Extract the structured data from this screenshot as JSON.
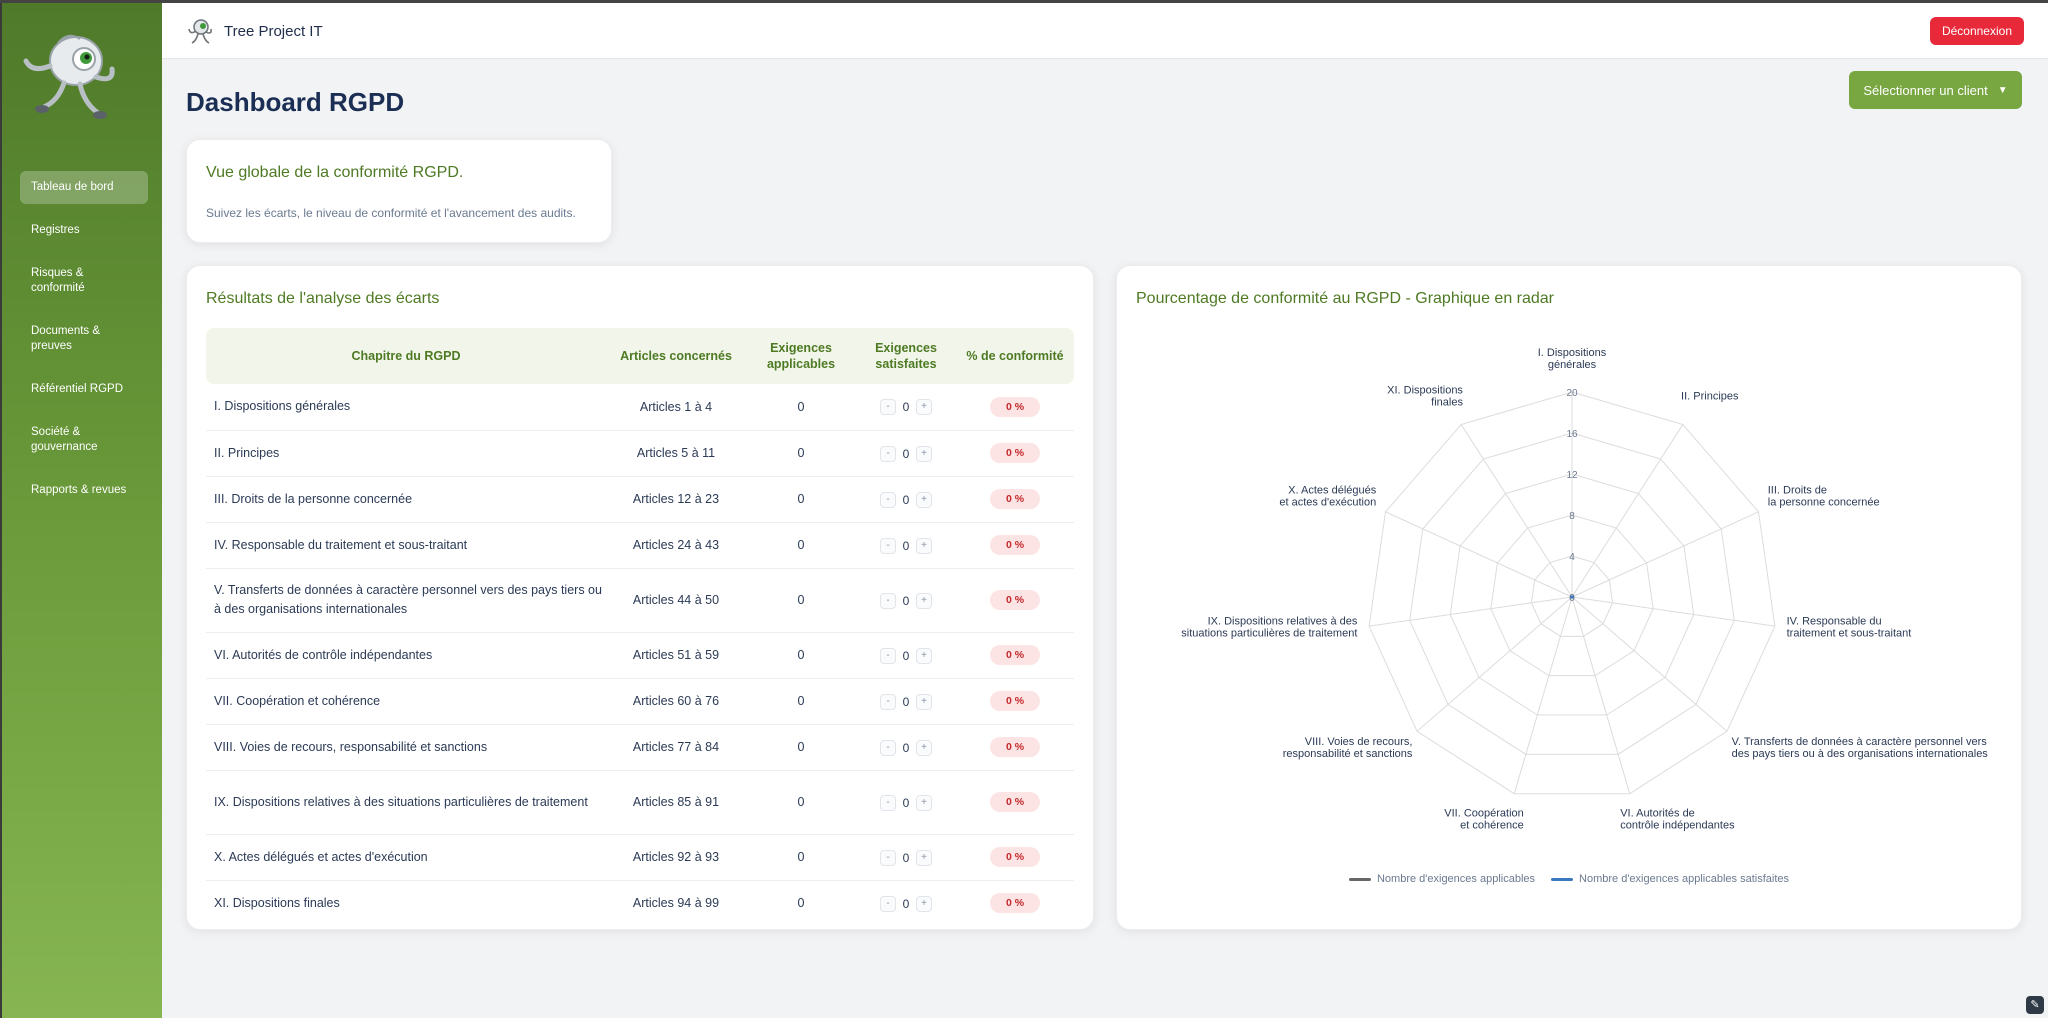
{
  "app": {
    "name": "Tree Project IT",
    "logout_label": "Déconnexion"
  },
  "sidebar": {
    "items": [
      {
        "label": "Tableau de bord",
        "active": true
      },
      {
        "label": "Registres",
        "active": false
      },
      {
        "label": "Risques & conformité",
        "active": false
      },
      {
        "label": "Documents & preuves",
        "active": false
      },
      {
        "label": "Référentiel RGPD",
        "active": false
      },
      {
        "label": "Société & gouvernance",
        "active": false
      },
      {
        "label": "Rapports & revues",
        "active": false
      }
    ]
  },
  "page": {
    "title": "Dashboard RGPD",
    "client_select_label": "Sélectionner un client"
  },
  "intro": {
    "title": "Vue globale de la conformité RGPD.",
    "subtitle": "Suivez les écarts, le niveau de conformité et l'avancement des audits."
  },
  "gaps": {
    "title": "Résultats de l'analyse des écarts",
    "headers": [
      "Chapitre du RGPD",
      "Articles concernés",
      "Exigences applicables",
      "Exigences satisfaites",
      "% de conformité"
    ],
    "rows": [
      {
        "chapter": "I. Dispositions générales",
        "articles": "Articles 1 à 4",
        "applicable": "0",
        "satisfied": "0",
        "pct": "0 %"
      },
      {
        "chapter": "II. Principes",
        "articles": "Articles 5 à 11",
        "applicable": "0",
        "satisfied": "0",
        "pct": "0 %"
      },
      {
        "chapter": "III. Droits de la personne concernée",
        "articles": "Articles 12 à 23",
        "applicable": "0",
        "satisfied": "0",
        "pct": "0 %"
      },
      {
        "chapter": "IV. Responsable du traitement et sous-traitant",
        "articles": "Articles 24 à 43",
        "applicable": "0",
        "satisfied": "0",
        "pct": "0 %"
      },
      {
        "chapter": "V. Transferts de données à caractère personnel vers des pays tiers ou à des organisations internationales",
        "articles": "Articles 44 à 50",
        "applicable": "0",
        "satisfied": "0",
        "pct": "0 %"
      },
      {
        "chapter": "VI. Autorités de contrôle indépendantes",
        "articles": "Articles 51 à 59",
        "applicable": "0",
        "satisfied": "0",
        "pct": "0 %"
      },
      {
        "chapter": "VII. Coopération et cohérence",
        "articles": "Articles 60 à 76",
        "applicable": "0",
        "satisfied": "0",
        "pct": "0 %"
      },
      {
        "chapter": "VIII. Voies de recours, responsabilité et sanctions",
        "articles": "Articles 77 à 84",
        "applicable": "0",
        "satisfied": "0",
        "pct": "0 %"
      },
      {
        "chapter": "IX. Dispositions relatives à des situations particulières de traitement",
        "articles": "Articles 85 à 91",
        "applicable": "0",
        "satisfied": "0",
        "pct": "0 %"
      },
      {
        "chapter": "X. Actes délégués et actes d'exécution",
        "articles": "Articles 92 à 93",
        "applicable": "0",
        "satisfied": "0",
        "pct": "0 %"
      },
      {
        "chapter": "XI. Dispositions finales",
        "articles": "Articles 94 à 99",
        "applicable": "0",
        "satisfied": "0",
        "pct": "0 %"
      }
    ],
    "stepper_minus": "-",
    "stepper_plus": "+"
  },
  "radar": {
    "title": "Pourcentage de conformité au RGPD - Graphique en radar"
  },
  "chart_data": {
    "type": "radar",
    "axes": [
      [
        "I. Dispositions",
        "générales"
      ],
      [
        "II. Principes"
      ],
      [
        "III. Droits de",
        "la personne concernée"
      ],
      [
        "IV. Responsable du",
        "traitement et sous-traitant"
      ],
      [
        "V. Transferts de données à caractère personnel vers",
        "des pays tiers ou à des organisations internationales"
      ],
      [
        "VI. Autorités de",
        "contrôle indépendantes"
      ],
      [
        "VII. Coopération",
        "et cohérence"
      ],
      [
        "VIII. Voies de recours,",
        "responsabilité et sanctions"
      ],
      [
        "IX. Dispositions relatives à des",
        "situations particulières de traitement"
      ],
      [
        "X. Actes délégués",
        "et actes d'exécution"
      ],
      [
        "XI. Dispositions",
        "finales"
      ]
    ],
    "range": [
      0,
      20
    ],
    "ticks": [
      "0",
      "4",
      "8",
      "12",
      "16",
      "20"
    ],
    "series": [
      {
        "name": "Nombre d'exigences applicables",
        "color": "#666666",
        "values": [
          0,
          0,
          0,
          0,
          0,
          0,
          0,
          0,
          0,
          0,
          0
        ]
      },
      {
        "name": "Nombre d'exigences applicables satisfaites",
        "color": "#3a78c2",
        "values": [
          0,
          0,
          0,
          0,
          0,
          0,
          0,
          0,
          0,
          0,
          0
        ]
      }
    ],
    "grid": true,
    "legend_position": "bottom"
  },
  "colors": {
    "accent": "#78a641",
    "title_green": "#4e7a23",
    "danger": "#e8293a"
  }
}
